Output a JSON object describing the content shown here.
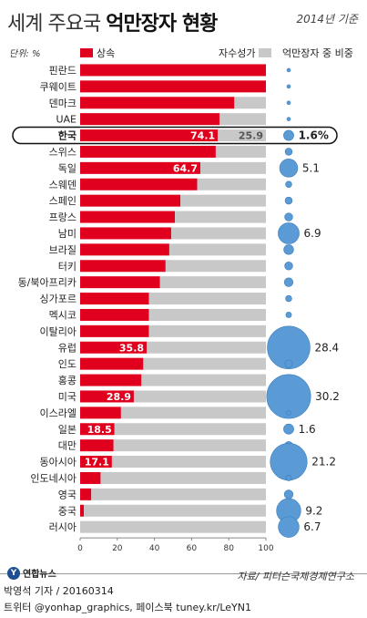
{
  "header": {
    "title_normal": "세계 주요국",
    "title_bold": "억만장자 현황",
    "date_note": "2014년 기준",
    "unit": "단위: %",
    "legend_inherited": "상속",
    "legend_self_made": "자수성가",
    "share_header": "억만장자 중 비중"
  },
  "footer": {
    "logo": "연합뉴스",
    "source": "자료/ 피터슨국제경제연구소",
    "credit": "박영석 기자 / 20160314",
    "twitter": "트위터 @yonhap_graphics, 페이스북 tuney.kr/LeYN1"
  },
  "colors": {
    "inherited": "#e0001e",
    "self_made": "#c8c8c8",
    "bubble": "#5b9bd5",
    "bubble_edge": "#3a7dbd"
  },
  "chart_data": {
    "type": "bar",
    "orientation": "horizontal",
    "stacked": true,
    "xlim": [
      0,
      100
    ],
    "x_ticks": [
      "0",
      "20",
      "40",
      "60",
      "80",
      "100"
    ],
    "categories": [
      "핀란드",
      "쿠웨이트",
      "덴마크",
      "UAE",
      "한국",
      "스위스",
      "독일",
      "스웨덴",
      "스페인",
      "프랑스",
      "남미",
      "브라질",
      "터키",
      "동/북아프리카",
      "싱가포르",
      "멕시코",
      "이탈리아",
      "유럽",
      "인도",
      "홍콩",
      "미국",
      "이스라엘",
      "일본",
      "대만",
      "동아시아",
      "인도네시아",
      "영국",
      "중국",
      "러시아"
    ],
    "series": [
      {
        "name": "상속",
        "values": [
          100,
          100,
          83,
          75,
          74.1,
          73,
          64.7,
          63,
          54,
          51,
          49,
          48,
          46,
          43,
          37,
          37,
          37,
          35.8,
          34,
          33,
          28.9,
          22,
          18.5,
          18,
          17.1,
          11,
          6,
          2,
          0
        ]
      },
      {
        "name": "자수성가",
        "values": [
          0,
          0,
          17,
          25,
          25.9,
          27,
          35.3,
          37,
          46,
          49,
          51,
          52,
          54,
          57,
          63,
          63,
          63,
          64.2,
          66,
          67,
          71.1,
          78,
          81.5,
          82,
          82.9,
          89,
          94,
          98,
          100
        ]
      }
    ],
    "bar_labels": {
      "한국": [
        "74.1",
        "25.9"
      ],
      "독일": [
        "64.7"
      ],
      "유럽": [
        "35.8"
      ],
      "미국": [
        "28.9"
      ],
      "일본": [
        "18.5"
      ],
      "동아시아": [
        "17.1"
      ]
    },
    "share_of_billionaires": [
      0.2,
      0.2,
      0.2,
      0.2,
      1.6,
      0.8,
      5.1,
      0.6,
      0.8,
      1.0,
      6.9,
      1.5,
      1.0,
      1.2,
      0.6,
      0.5,
      0.9,
      28.4,
      0.9,
      0.8,
      30.2,
      0.3,
      1.6,
      1.0,
      21.2,
      0.5,
      1.2,
      9.2,
      6.7
    ],
    "share_labels": {
      "한국": "1.6%",
      "독일": "5.1",
      "남미": "6.9",
      "유럽": "28.4",
      "미국": "30.2",
      "일본": "1.6",
      "동아시아": "21.2",
      "중국": "9.2",
      "러시아": "6.7"
    },
    "highlight": "한국"
  }
}
